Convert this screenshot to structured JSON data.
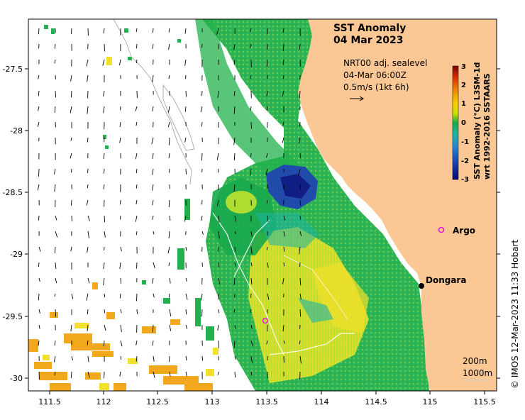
{
  "title_line1": "SST Anomaly",
  "title_line2": "04 Mar 2023",
  "current_info": {
    "line1": "NRT00 adj. sealevel",
    "line2": "04-Mar 06:00Z",
    "line3": "0.5m/s (1kt 6h)"
  },
  "colorbar": {
    "label_line1": "SST Anomaly (°C) L3SM-1d",
    "label_line2": "wrt 1992-2016 SSTAARS",
    "ticks": [
      "3",
      "2",
      "1",
      "0",
      "-1",
      "-2",
      "-3"
    ],
    "colors": [
      "#7f0000",
      "#d73000",
      "#f08a00",
      "#f7d000",
      "#c9e000",
      "#6cc84a",
      "#1aa84c",
      "#20b8a0",
      "#2a80d0",
      "#1c3cb0",
      "#0a0a70"
    ]
  },
  "axes": {
    "x_ticks": [
      "111.5",
      "112",
      "112.5",
      "113",
      "113.5",
      "114",
      "114.5",
      "115",
      "115.5"
    ],
    "y_ticks": [
      "-27.5",
      "-28",
      "-28.5",
      "-29",
      "-29.5",
      "-30"
    ]
  },
  "places": {
    "argo": "Argo",
    "dongara": "Dongara"
  },
  "bathymetry": {
    "label_200": "200m",
    "label_1000": "1000m"
  },
  "credit": "© IMOS 12-Mar-2023 11:33 Hobart",
  "colors": {
    "land": "#fbc794",
    "green": "#22b14c",
    "yellow_green": "#c8e62e",
    "yellow": "#f2e02a",
    "orange": "#f2a81c",
    "blue": "#1f3fb5",
    "cyan": "#1eb3a6",
    "magenta": "#e020e0"
  }
}
